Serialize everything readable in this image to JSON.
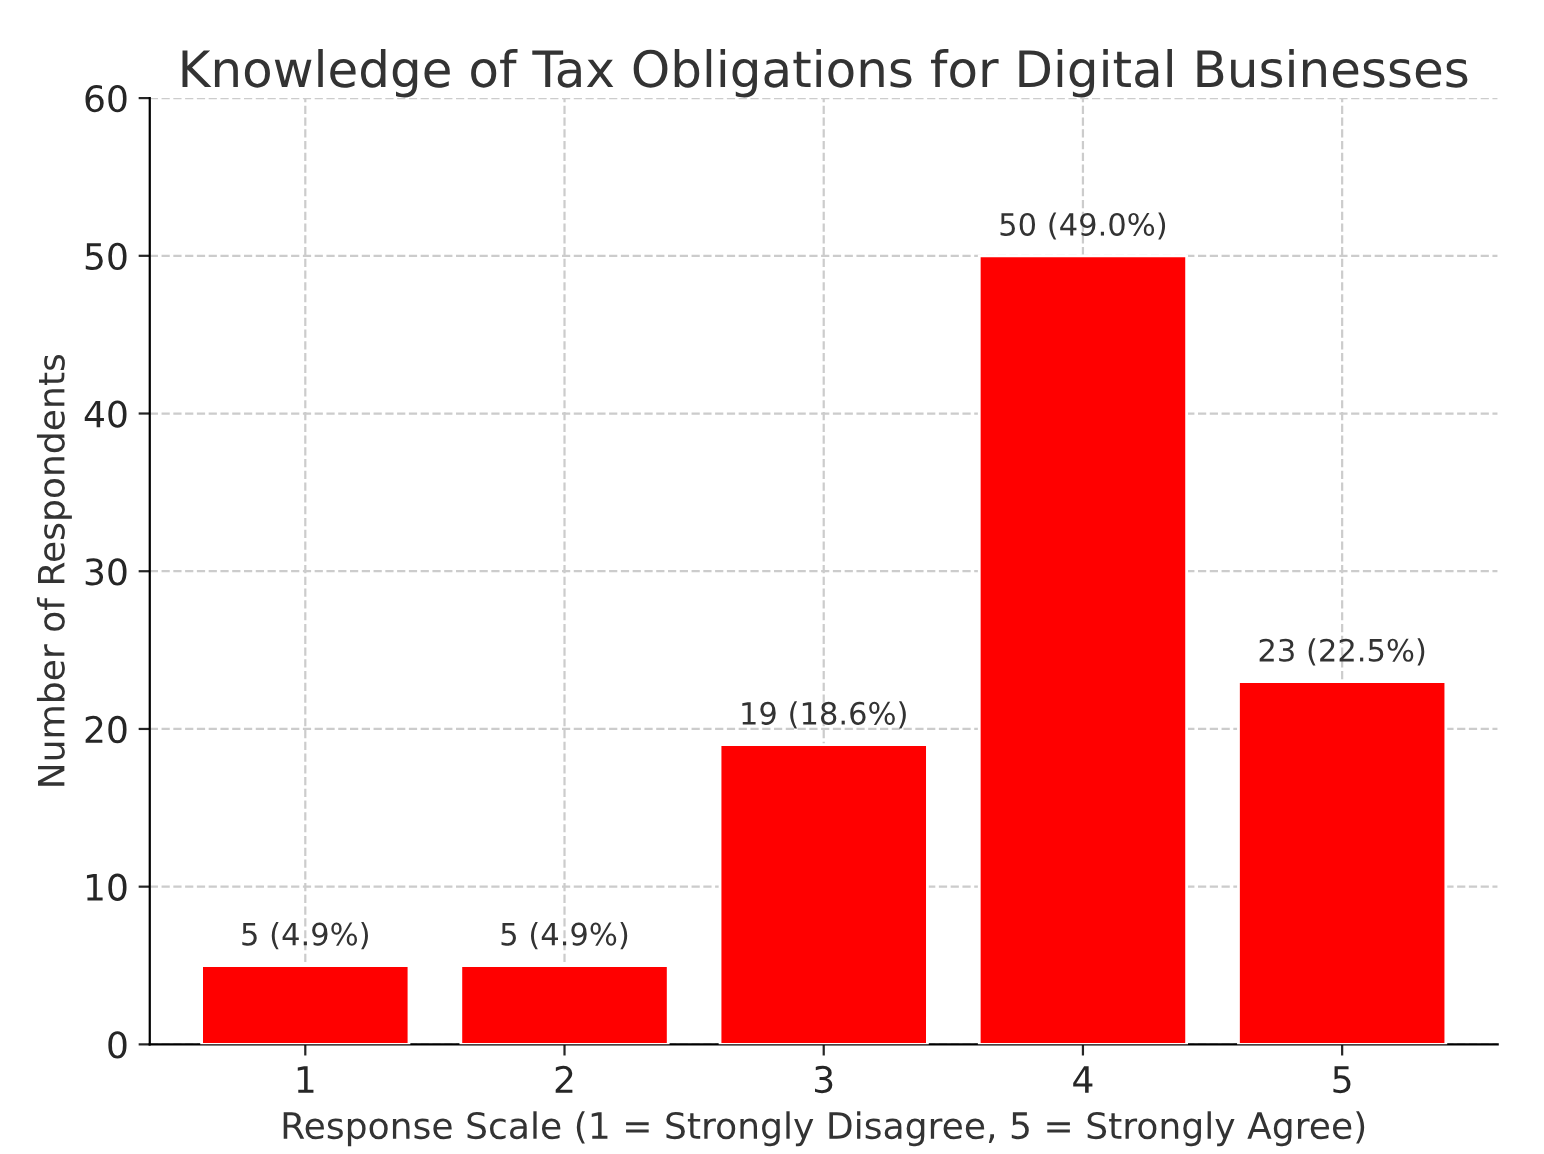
{
  "chart_data": {
    "type": "bar",
    "title": "Knowledge of Tax Obligations for Digital Businesses",
    "xlabel": "Response Scale (1 = Strongly Disagree, 5 = Strongly Agree)",
    "ylabel": "Number of Respondents",
    "categories": [
      "1",
      "2",
      "3",
      "4",
      "5"
    ],
    "values": [
      5,
      5,
      19,
      50,
      23
    ],
    "color": "#ff0000",
    "value_labels": [
      "5 (4.9%)",
      "5 (4.9%)",
      "19 (18.6%)",
      "50 (49.0%)",
      "23 (22.5%)"
    ],
    "ylim": [
      0,
      60
    ],
    "yticks": [
      0,
      10,
      20,
      30,
      40,
      50,
      60
    ],
    "grid": true
  }
}
